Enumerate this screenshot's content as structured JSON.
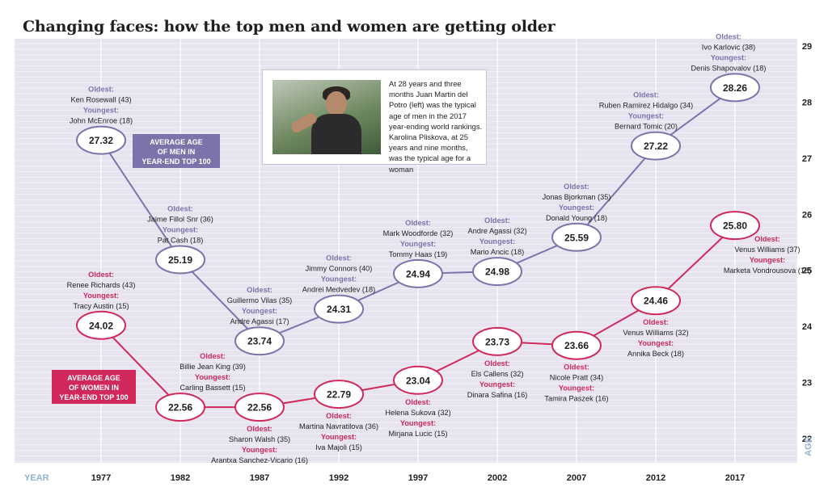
{
  "title": "Changing faces: how the top men and women are getting older",
  "caption": "At 28 years and three months Juan Martin del Potro (left) was the typical age of men in the 2017 year-ending world rankings. Karolina Pliskova, at 25 years and nine months, was the typical age for a woman",
  "colors": {
    "men": "#7d73ab",
    "women": "#d0285a",
    "plot_bg": "#e7e4ef",
    "grid": "#ffffff"
  },
  "chart_data": {
    "type": "line",
    "x": [
      1977,
      1982,
      1987,
      1992,
      1997,
      2002,
      2007,
      2012,
      2017
    ],
    "xlabel": "YEAR",
    "ylabel": "AGE",
    "ylim": [
      21.6,
      29.3
    ],
    "yticks": [
      22,
      23,
      24,
      25,
      26,
      27,
      28,
      29
    ],
    "series": [
      {
        "name": "AVERAGE AGE OF MEN IN YEAR-END TOP 100",
        "label_lines": [
          "AVERAGE AGE",
          "OF MEN IN",
          "YEAR-END TOP 100"
        ],
        "values": [
          27.32,
          25.19,
          23.74,
          24.31,
          24.94,
          24.98,
          25.59,
          27.22,
          28.26
        ],
        "labels": [
          "27.32",
          "25.19",
          "23.74",
          "24.31",
          "24.94",
          "24.98",
          "25.59",
          "27.22",
          "28.26"
        ],
        "oldest": [
          "Ken Rosewall (43)",
          "Jaime Fillol Snr (36)",
          "Guillermo Vilas (35)",
          "Jimmy Connors (40)",
          "Mark Woodforde (32)",
          "Andre Agassi (32)",
          "Jonas Bjorkman (35)",
          "Ruben Ramirez Hidalgo (34)",
          "Ivo Karlovic (38)"
        ],
        "youngest": [
          "John McEnroe (18)",
          "Pat Cash (18)",
          "Andre Agassi (17)",
          "Andrei Medvedev (18)",
          "Tommy Haas (19)",
          "Mario Ancic (18)",
          "Donald Young (18)",
          "Bernard Tomic (20)",
          "Denis Shapovalov (18)"
        ]
      },
      {
        "name": "AVERAGE AGE OF WOMEN IN YEAR-END TOP 100",
        "label_lines": [
          "AVERAGE AGE",
          "OF WOMEN IN",
          "YEAR-END TOP 100"
        ],
        "values": [
          24.02,
          22.56,
          22.56,
          22.79,
          23.04,
          23.73,
          23.66,
          24.46,
          25.8
        ],
        "labels": [
          "24.02",
          "22.56",
          "22.56",
          "22.79",
          "23.04",
          "23.73",
          "23.66",
          "24.46",
          "25.80"
        ],
        "oldest": [
          "Renee Richards (43)",
          "Billie Jean King (39)",
          "Sharon Walsh (35)",
          "Martina Navratilova (36)",
          "Helena Sukova (32)",
          "Els Callens (32)",
          "Nicole Pratt (34)",
          "Venus Williams (32)",
          "Venus Williams (37)"
        ],
        "youngest": [
          "Tracy Austin (15)",
          "Carling Bassett (15)",
          "Arantxa Sanchez-Vicario (16)",
          "Iva Majoli (15)",
          "Mirjana Lucic (15)",
          "Dinara Safina (16)",
          "Tamira Paszek (16)",
          "Annika Beck (18)",
          "Marketa Vondrousova (18)"
        ]
      }
    ],
    "oldest_label": "Oldest:",
    "youngest_label": "Youngest:",
    "grid": true
  }
}
